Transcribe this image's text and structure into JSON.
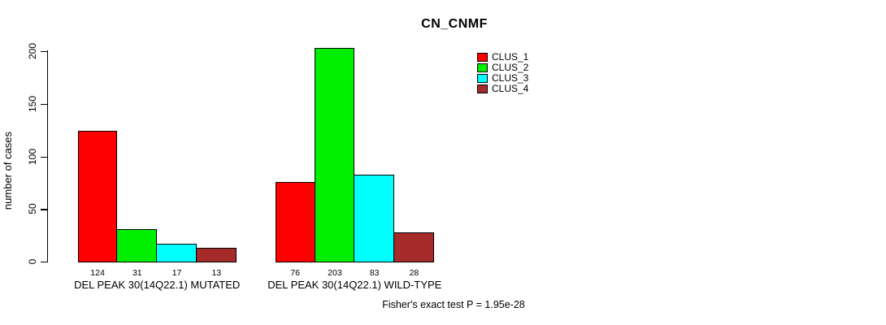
{
  "chart_data": {
    "type": "bar",
    "title": "CN_CNMF",
    "ylabel": "number of cases",
    "xlabel": "",
    "ylim": [
      0,
      200
    ],
    "yticks": [
      0,
      50,
      100,
      150,
      200
    ],
    "grid": false,
    "legend_position": "top-right-outside",
    "show_bar_values": true,
    "categories": [
      "DEL PEAK 30(14Q22.1) MUTATED",
      "DEL PEAK 30(14Q22.1) WILD-TYPE"
    ],
    "series": [
      {
        "name": "CLUS_1",
        "color": "#FF0000",
        "values": [
          124,
          76
        ]
      },
      {
        "name": "CLUS_2",
        "color": "#00EE00",
        "values": [
          31,
          203
        ]
      },
      {
        "name": "CLUS_3",
        "color": "#00FFFF",
        "values": [
          17,
          83
        ]
      },
      {
        "name": "CLUS_4",
        "color": "#A52A2A",
        "values": [
          13,
          28
        ]
      }
    ],
    "annotation": "Fisher's exact test P = 1.95e-28"
  }
}
